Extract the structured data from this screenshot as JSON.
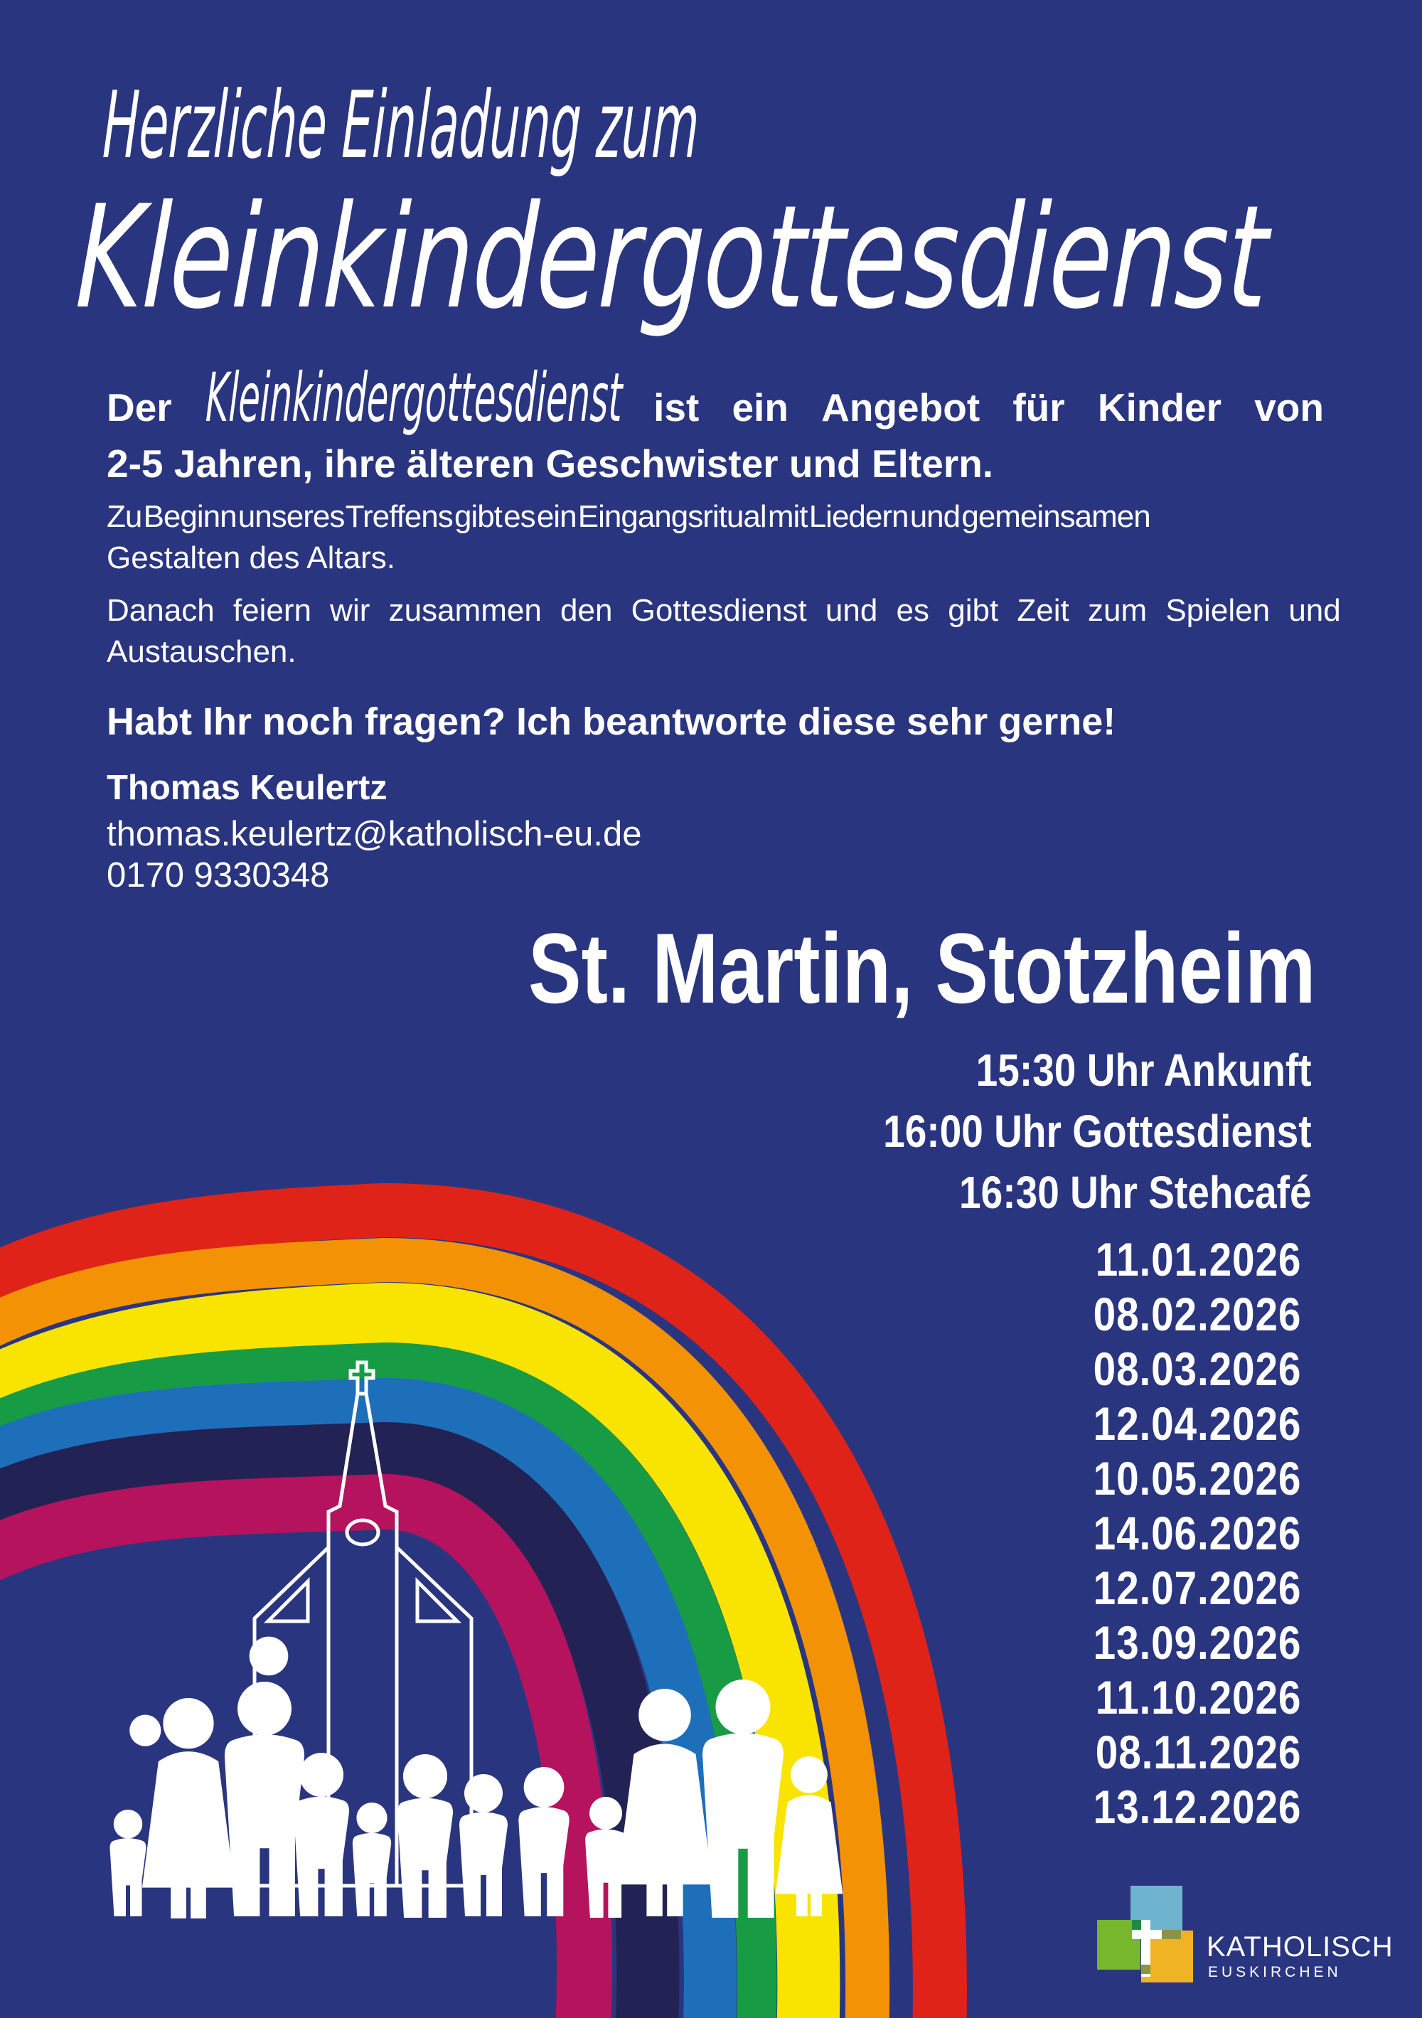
{
  "poster": {
    "title_line1": "Herzliche Einladung zum",
    "title_line2": "Kleinkindergottesdienst",
    "intro": {
      "line1_segments": [
        {
          "text": "Der",
          "script": false
        },
        {
          "text": "Kleinkindergottesdienst",
          "script": true
        },
        {
          "text": "ist ein Angebot für Kinder von",
          "script": false
        }
      ],
      "line2": "2-5 Jahren, ihre älteren Geschwister und Eltern."
    },
    "body": {
      "p1_line1": "Zu Beginn unseres Treffens gibt es ein Eingangsritual mit Liedern und gemeinsamen",
      "p1_line2": "Gestalten des Altars.",
      "p2_line1": "Danach feiern wir zusammen den Gottesdienst und es gibt Zeit zum Spielen und",
      "p2_line2": "Austauschen."
    },
    "question": "Habt Ihr noch fragen? Ich beantworte diese sehr gerne!",
    "contact": {
      "name": "Thomas Keulertz",
      "email": "thomas.keulertz@katholisch-eu.de",
      "phone": "0170 9330348"
    },
    "location": "St. Martin, Stotzheim",
    "schedule": [
      "15:30 Uhr Ankunft",
      "16:00 Uhr Gottesdienst",
      "16:30 Uhr Stehcafé"
    ],
    "dates": [
      "11.01.2026",
      "08.02.2026",
      "08.03.2026",
      "12.04.2026",
      "10.05.2026",
      "14.06.2026",
      "12.07.2026",
      "13.09.2026",
      "11.10.2026",
      "08.11.2026",
      "13.12.2026"
    ],
    "logo": {
      "line1": "KATHOLISCH",
      "line2": "EUSKIRCHEN"
    }
  },
  "colors": {
    "background": "#2A357F",
    "text": "#FFFFFF",
    "rainbow": {
      "red": "#E02318",
      "orange": "#F29204",
      "yellow": "#F8E400",
      "green": "#189B45",
      "blue": "#1E6FBA",
      "navy": "#222254",
      "magenta": "#B5135E"
    },
    "logo": {
      "light_blue": "#6FB4CE",
      "green": "#77B72B",
      "yellow": "#F0B323",
      "dark_green": "#1F8A44",
      "olive": "#8C9444",
      "cross": "#FFFFFF"
    }
  }
}
